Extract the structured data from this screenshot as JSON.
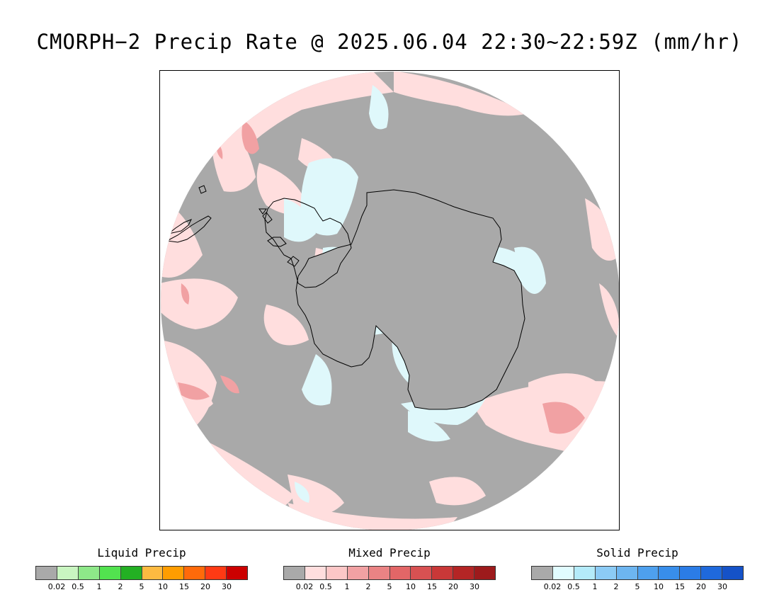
{
  "title": "CMORPH−2 Precip Rate @ 2025.06.04 22:30~22:59Z (mm/hr)",
  "map": {
    "projection": "south-polar-stereographic",
    "background_color": "#a9a9a9",
    "light_rain_color": "#ffdede",
    "snow_color": "#dff8fb",
    "coastline_color": "#000000"
  },
  "legends": [
    {
      "title": "Liquid Precip",
      "colors": [
        "#a9a9a9",
        "#c9f5c1",
        "#8ee889",
        "#52e24f",
        "#23b023",
        "#fdba41",
        "#ff9d00",
        "#ff6a0a",
        "#ff3a14",
        "#cc0000"
      ],
      "ticks": [
        "0.02",
        "0.5",
        "1",
        "2",
        "5",
        "10",
        "15",
        "20",
        "30"
      ]
    },
    {
      "title": "Mixed Precip",
      "colors": [
        "#a9a9a9",
        "#ffdede",
        "#fcc7c7",
        "#f1a1a3",
        "#ea8384",
        "#e36667",
        "#d85152",
        "#c93838",
        "#b42525",
        "#9d1a1c"
      ],
      "ticks": [
        "0.02",
        "0.5",
        "1",
        "2",
        "5",
        "10",
        "15",
        "20",
        "30"
      ]
    },
    {
      "title": "Solid Precip",
      "colors": [
        "#a9a9a9",
        "#e1fcff",
        "#b4ebfa",
        "#8ccbf5",
        "#6db5f0",
        "#4ea0ee",
        "#388eeb",
        "#2b7ce6",
        "#1f69dc",
        "#1552c8"
      ],
      "ticks": [
        "0.02",
        "0.5",
        "1",
        "2",
        "5",
        "10",
        "15",
        "20",
        "30"
      ]
    }
  ]
}
